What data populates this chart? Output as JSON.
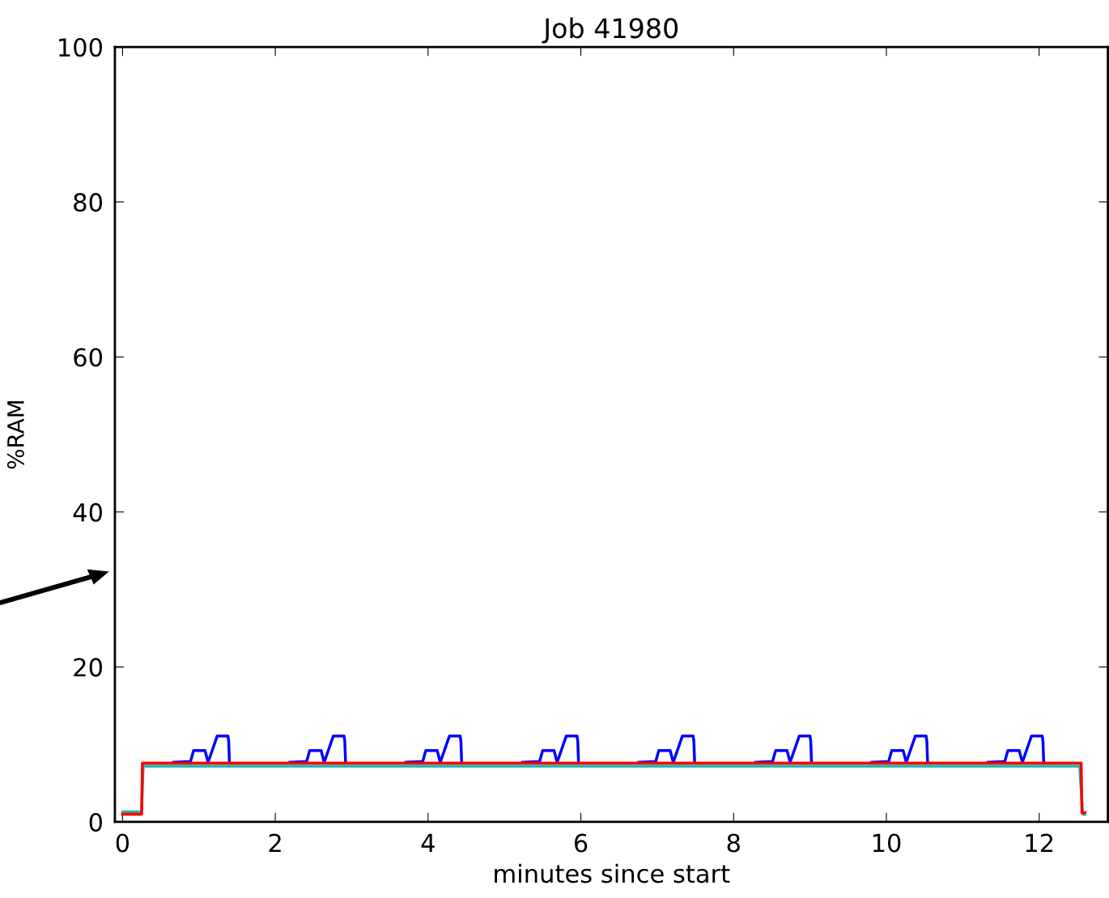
{
  "chart_data": {
    "type": "line",
    "title": "Job 41980",
    "xlabel": "minutes since start",
    "ylabel": "%RAM",
    "xlim": [
      -0.1,
      12.9
    ],
    "xticks": [
      0,
      2,
      4,
      6,
      8,
      10,
      12
    ],
    "ylim": [
      0,
      100
    ],
    "yticks": [
      0,
      20,
      40,
      60,
      80,
      100
    ],
    "grid": false,
    "marker": "none",
    "line_style": "solid",
    "series": [
      {
        "color": "#0000ff",
        "x": [
          0.67,
          0.89,
          0.93,
          1.08,
          1.12,
          1.24,
          1.38,
          1.39,
          1.4,
          1.41,
          2.19,
          2.41,
          2.45,
          2.6,
          2.64,
          2.76,
          2.9,
          2.91,
          2.92,
          2.93,
          3.71,
          3.93,
          3.97,
          4.12,
          4.16,
          4.28,
          4.42,
          4.43,
          4.44,
          4.45,
          5.24,
          5.46,
          5.5,
          5.65,
          5.69,
          5.81,
          5.95,
          5.96,
          5.97,
          5.98,
          6.76,
          6.98,
          7.02,
          7.17,
          7.21,
          7.33,
          7.47,
          7.48,
          7.49,
          7.5,
          8.29,
          8.51,
          8.55,
          8.7,
          8.74,
          8.86,
          9.0,
          9.01,
          9.02,
          9.03,
          9.81,
          10.03,
          10.07,
          10.22,
          10.26,
          10.38,
          10.52,
          10.53,
          10.54,
          10.55,
          11.33,
          11.55,
          11.59,
          11.74,
          11.78,
          11.9,
          12.04,
          12.05,
          12.06
        ],
        "values": [
          7.7,
          7.8,
          9.2,
          9.2,
          7.7,
          11.1,
          11.1,
          10.4,
          7.6,
          null,
          7.7,
          7.8,
          9.2,
          9.2,
          7.7,
          11.1,
          11.1,
          10.4,
          7.6,
          null,
          7.7,
          7.8,
          9.2,
          9.2,
          7.7,
          11.1,
          11.1,
          10.4,
          7.6,
          null,
          7.7,
          7.8,
          9.2,
          9.2,
          7.7,
          11.1,
          11.1,
          10.4,
          7.6,
          null,
          7.7,
          7.8,
          9.2,
          9.2,
          7.7,
          11.1,
          11.1,
          10.4,
          7.6,
          null,
          7.7,
          7.8,
          9.2,
          9.2,
          7.7,
          11.1,
          11.1,
          10.4,
          7.6,
          null,
          7.7,
          7.8,
          9.2,
          9.2,
          7.7,
          11.1,
          11.1,
          10.4,
          7.6,
          null,
          7.7,
          7.8,
          9.2,
          9.2,
          7.7,
          11.1,
          11.1,
          10.4,
          7.6
        ]
      },
      {
        "color": "#20b2aa",
        "x": [
          0,
          0.25,
          0.27,
          12.53,
          12.57,
          12.6
        ],
        "values": [
          1.3,
          1.3,
          7.2,
          7.2,
          1.0,
          1.0
        ]
      },
      {
        "color": "#ff0000",
        "x": [
          0,
          0.25,
          0.26,
          12.55,
          12.56,
          12.6
        ],
        "values": [
          1.0,
          1.0,
          7.6,
          7.6,
          1.2,
          1.2
        ]
      }
    ]
  }
}
